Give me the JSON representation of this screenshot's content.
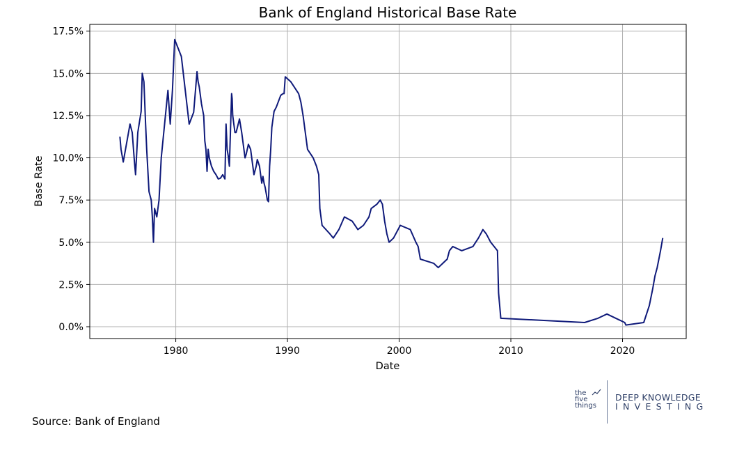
{
  "chart_data": {
    "type": "line",
    "title": "Bank of England Historical Base Rate",
    "xlabel": "Date",
    "ylabel": "Base Rate",
    "xlim": [
      1972.3,
      2025.7
    ],
    "ylim": [
      -0.7,
      17.9
    ],
    "grid": true,
    "x_ticks": [
      1980,
      1990,
      2000,
      2010,
      2020
    ],
    "x_tick_labels": [
      "1980",
      "1990",
      "2000",
      "2010",
      "2020"
    ],
    "y_ticks": [
      0,
      2.5,
      5,
      7.5,
      10,
      12.5,
      15,
      17.5
    ],
    "y_tick_labels": [
      "0.0%",
      "2.5%",
      "5.0%",
      "7.5%",
      "10.0%",
      "12.5%",
      "15.0%",
      "17.5%"
    ],
    "series": [
      {
        "color": "#0f1a7a",
        "x": [
          1975.0,
          1975.1,
          1975.3,
          1975.7,
          1975.9,
          1976.1,
          1976.3,
          1976.4,
          1976.6,
          1976.9,
          1977.0,
          1977.15,
          1977.3,
          1977.4,
          1977.6,
          1977.8,
          1977.9,
          1978.0,
          1978.1,
          1978.3,
          1978.5,
          1978.7,
          1979.0,
          1979.3,
          1979.5,
          1979.7,
          1979.9,
          1980.5,
          1981.2,
          1981.6,
          1981.9,
          1982.0,
          1982.1,
          1982.2,
          1982.3,
          1982.5,
          1982.6,
          1982.7,
          1982.8,
          1982.9,
          1983.0,
          1983.2,
          1983.4,
          1983.6,
          1983.8,
          1984.0,
          1984.2,
          1984.4,
          1984.5,
          1984.6,
          1984.7,
          1984.8,
          1985.0,
          1985.05,
          1985.1,
          1985.3,
          1985.4,
          1985.5,
          1985.7,
          1985.9,
          1986.2,
          1986.3,
          1986.5,
          1986.7,
          1987.0,
          1987.2,
          1987.3,
          1987.5,
          1987.7,
          1987.8,
          1987.9,
          1988.0,
          1988.2,
          1988.3,
          1988.4,
          1988.5,
          1988.6,
          1988.8,
          1989.0,
          1989.4,
          1989.6,
          1989.7,
          1989.8,
          1990.3,
          1990.8,
          1991.0,
          1991.2,
          1991.4,
          1991.6,
          1991.8,
          1992.3,
          1992.6,
          1992.8,
          1992.9,
          1993.1,
          1993.8,
          1994.1,
          1994.6,
          1995.1,
          1995.8,
          1996.3,
          1996.8,
          1997.3,
          1997.5,
          1998.0,
          1998.3,
          1998.5,
          1998.7,
          1998.9,
          1999.1,
          1999.5,
          2000.1,
          2001.0,
          2001.5,
          2001.7,
          2001.9,
          2003.1,
          2003.5,
          2004.3,
          2004.5,
          2004.8,
          2005.6,
          2006.6,
          2007.1,
          2007.3,
          2007.5,
          2007.8,
          2008.2,
          2008.5,
          2008.8,
          2008.9,
          2009.1,
          2016.6,
          2017.8,
          2018.6,
          2020.2,
          2020.3,
          2021.9,
          2022.4,
          2022.7,
          2022.9,
          2023.1,
          2023.4,
          2023.6
        ],
        "y": [
          11.25,
          10.5,
          9.75,
          11.25,
          12.0,
          11.5,
          9.75,
          9.0,
          11.5,
          12.75,
          15.0,
          14.5,
          12.0,
          10.5,
          8.0,
          7.5,
          6.5,
          5.0,
          7.0,
          6.5,
          7.5,
          10.0,
          12.0,
          14.0,
          12.0,
          14.0,
          17.0,
          16.0,
          12.0,
          12.7,
          15.1,
          14.5,
          14.2,
          13.7,
          13.2,
          12.5,
          11.0,
          10.5,
          9.2,
          10.5,
          10.0,
          9.5,
          9.2,
          9.0,
          8.75,
          8.8,
          9.0,
          8.75,
          12.0,
          10.5,
          10.1,
          9.5,
          13.8,
          13.5,
          12.5,
          11.5,
          11.5,
          11.75,
          12.3,
          11.5,
          10.0,
          10.2,
          10.8,
          10.5,
          9.0,
          9.5,
          9.9,
          9.5,
          8.5,
          8.9,
          8.5,
          8.25,
          7.5,
          7.4,
          9.5,
          10.5,
          11.8,
          12.75,
          13.0,
          13.7,
          13.8,
          13.8,
          14.8,
          14.5,
          14.0,
          13.8,
          13.3,
          12.5,
          11.5,
          10.5,
          10.0,
          9.5,
          9.0,
          7.0,
          6.0,
          5.5,
          5.25,
          5.75,
          6.5,
          6.25,
          5.75,
          6.0,
          6.5,
          7.0,
          7.25,
          7.5,
          7.25,
          6.25,
          5.5,
          5.0,
          5.25,
          6.0,
          5.75,
          5.0,
          4.75,
          4.0,
          3.75,
          3.5,
          4.0,
          4.5,
          4.75,
          4.5,
          4.75,
          5.25,
          5.5,
          5.75,
          5.5,
          5.0,
          4.75,
          4.5,
          2.0,
          0.5,
          0.25,
          0.5,
          0.75,
          0.25,
          0.1,
          0.25,
          1.25,
          2.25,
          3.0,
          3.5,
          4.5,
          5.25
        ]
      }
    ]
  },
  "source_text": "Source: Bank of England",
  "logo": {
    "mark_lines": [
      "the",
      "five",
      "things"
    ],
    "line1": "DEEP KNOWLEDGE",
    "line2": "INVESTING"
  }
}
